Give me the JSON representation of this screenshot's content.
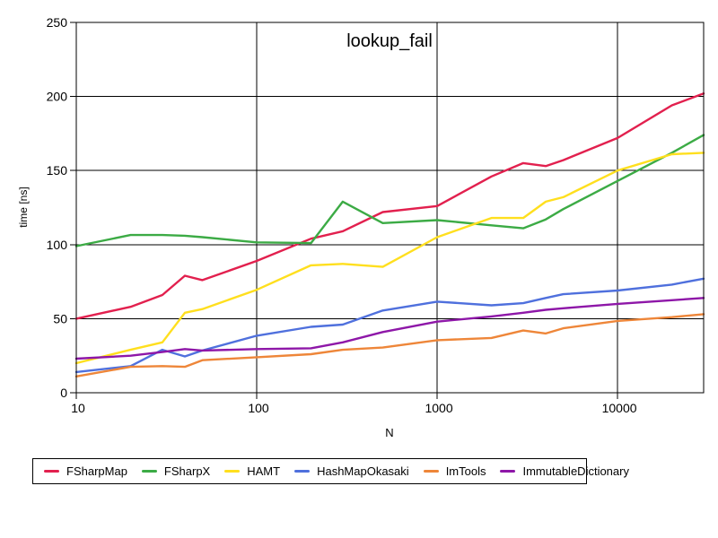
{
  "title": "lookup_fail",
  "chart_data": {
    "type": "line",
    "title": "lookup_fail",
    "xlabel": "N",
    "ylabel": "time [ns]",
    "x_scale": "log",
    "grid": true,
    "legend_position": "bottom",
    "xlim": [
      10,
      30000
    ],
    "ylim": [
      0,
      250
    ],
    "x_ticks": [
      10,
      100,
      1000,
      10000
    ],
    "y_ticks": [
      0,
      50,
      100,
      150,
      200,
      250
    ],
    "x": [
      10,
      20,
      30,
      40,
      50,
      100,
      200,
      300,
      500,
      1000,
      2000,
      3000,
      4000,
      5000,
      10000,
      20000,
      30000
    ],
    "series": [
      {
        "name": "FSharpMap",
        "color": "#e2204e",
        "values": [
          50,
          58,
          66,
          79,
          76,
          89,
          104,
          109,
          122,
          126,
          146,
          155,
          153,
          157,
          172,
          194,
          202
        ]
      },
      {
        "name": "FSharpX",
        "color": "#3cab45",
        "values": [
          99,
          106.5,
          106.5,
          106,
          105,
          101.5,
          101,
          129,
          114.5,
          116.5,
          113,
          111,
          117,
          124,
          143,
          162,
          174
        ]
      },
      {
        "name": "HAMT",
        "color": "#ffdf1e",
        "values": [
          20,
          29,
          34,
          54,
          56.5,
          69.5,
          86,
          87,
          85,
          105,
          118,
          118,
          129,
          132,
          150,
          161,
          162
        ]
      },
      {
        "name": "HashMapOkasaki",
        "color": "#4f70dd",
        "values": [
          14,
          18,
          29,
          24.5,
          28.5,
          38.5,
          44.5,
          46,
          55.5,
          61.5,
          59,
          60.5,
          64,
          66.5,
          69,
          73,
          77
        ]
      },
      {
        "name": "ImTools",
        "color": "#ee8639",
        "values": [
          11,
          17.5,
          18,
          17.5,
          22,
          24,
          26,
          29,
          30.5,
          35.5,
          37,
          42,
          40,
          43.5,
          48.5,
          51,
          53
        ]
      },
      {
        "name": "ImmutableDictionary",
        "color": "#8e17a8",
        "values": [
          23,
          25,
          27.5,
          29.5,
          28.5,
          29.5,
          30,
          34,
          41,
          48,
          51.5,
          54,
          56,
          57,
          60,
          62.5,
          64
        ]
      }
    ]
  }
}
